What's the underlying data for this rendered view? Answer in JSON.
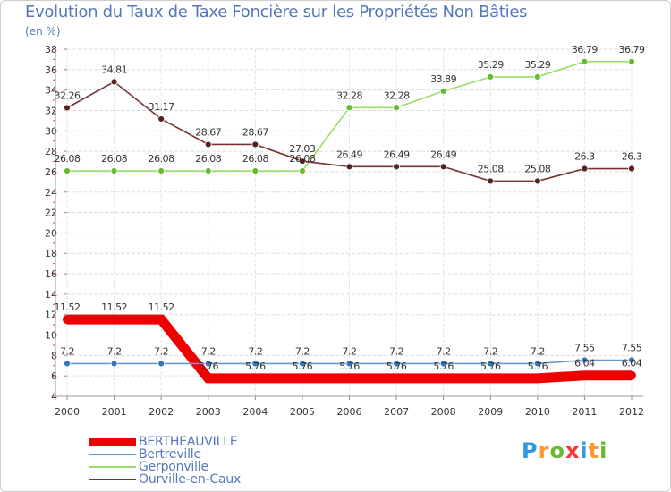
{
  "header": {
    "title": "Evolution du Taux de Taxe Foncière sur les Propriétés Non Bâties",
    "unit": "(en %)"
  },
  "chart_data": {
    "type": "line",
    "title": "Evolution du Taux de Taxe Foncière sur les Propriétés Non Bâties",
    "ylabel": "(en %)",
    "xlabel": "",
    "categories": [
      "2000",
      "2001",
      "2002",
      "2003",
      "2004",
      "2005",
      "2006",
      "2007",
      "2008",
      "2009",
      "2010",
      "2011",
      "2012"
    ],
    "ylim": [
      4,
      38
    ],
    "yticks": [
      4,
      6,
      8,
      10,
      12,
      14,
      16,
      18,
      20,
      22,
      24,
      26,
      28,
      30,
      32,
      34,
      36,
      38
    ],
    "grid": true,
    "legend_position": "bottom-left",
    "series": [
      {
        "name": "BERTHEAUVILLE",
        "color": "#ee0000",
        "marker_color": "#ee0000",
        "emphasis": true,
        "values": [
          11.52,
          11.52,
          11.52,
          5.76,
          5.76,
          5.76,
          5.76,
          5.76,
          5.76,
          5.76,
          5.76,
          6.04,
          6.04
        ],
        "labels": [
          "11.52",
          "11.52",
          "11.52",
          "5.76",
          "5.76",
          "5.76",
          "5.76",
          "5.76",
          "5.76",
          "5.76",
          "5.76",
          "6.04",
          "6.04"
        ]
      },
      {
        "name": "Bertreville",
        "color": "#6699cc",
        "marker_color": "#3377bb",
        "emphasis": false,
        "values": [
          7.2,
          7.2,
          7.2,
          7.2,
          7.2,
          7.2,
          7.2,
          7.2,
          7.2,
          7.2,
          7.2,
          7.55,
          7.55
        ],
        "labels": [
          "7.2",
          "7.2",
          "7.2",
          "7.2",
          "7.2",
          "7.2",
          "7.2",
          "7.2",
          "7.2",
          "7.2",
          "7.2",
          "7.55",
          "7.55"
        ]
      },
      {
        "name": "Gerponville",
        "color": "#99dd66",
        "marker_color": "#66bb33",
        "emphasis": false,
        "values": [
          26.08,
          26.08,
          26.08,
          26.08,
          26.08,
          26.08,
          32.28,
          32.28,
          33.89,
          35.29,
          35.29,
          36.79,
          36.79
        ],
        "labels": [
          "26.08",
          "26.08",
          "26.08",
          "26.08",
          "26.08",
          "26.08",
          "32.28",
          "32.28",
          "33.89",
          "35.29",
          "35.29",
          "36.79",
          "36.79"
        ]
      },
      {
        "name": "Ourville-en-Caux",
        "color": "#773333",
        "marker_color": "#552222",
        "emphasis": false,
        "values": [
          32.26,
          34.81,
          31.17,
          28.67,
          28.67,
          27.03,
          26.49,
          26.49,
          26.49,
          25.08,
          25.08,
          26.3,
          26.3
        ],
        "labels": [
          "32.26",
          "34.81",
          "31.17",
          "28.67",
          "28.67",
          "27.03",
          "26.49",
          "26.49",
          "26.49",
          "25.08",
          "25.08",
          "26.3",
          "26.3"
        ]
      }
    ]
  },
  "logo": {
    "text": "Proxiti",
    "colors": [
      "#3399dd",
      "#ff9933",
      "#66bb33",
      "#ff3333",
      "#3399dd",
      "#ff9933",
      "#66bb33"
    ]
  }
}
